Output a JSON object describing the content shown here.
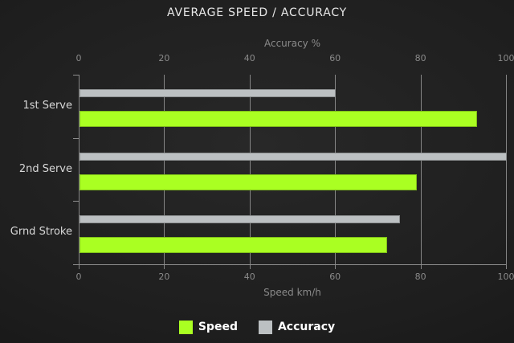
{
  "title": "AVERAGE SPEED / ACCURACY",
  "colors": {
    "speed": "#aaff22",
    "accuracy": "#bcc0c2",
    "grid": "#858585",
    "tick_text": "#8a8a8a",
    "category_text": "#d8d8d8",
    "title_text": "#e8e8e8",
    "legend_text": "#ffffff",
    "background_center": "#282828",
    "background_edge": "#121212"
  },
  "chart_data": {
    "type": "bar",
    "orientation": "horizontal",
    "title": "AVERAGE SPEED / ACCURACY",
    "categories": [
      "1st Serve",
      "2nd Serve",
      "Grnd Stroke"
    ],
    "series": [
      {
        "name": "Accuracy",
        "color": "#bcc0c2",
        "axis": "top",
        "values": [
          60,
          100,
          75
        ]
      },
      {
        "name": "Speed",
        "color": "#aaff22",
        "axis": "bottom",
        "values": [
          93,
          79,
          72
        ]
      }
    ],
    "top_axis": {
      "label": "Accuracy %",
      "ticks": [
        0,
        20,
        40,
        60,
        80,
        100
      ],
      "range": [
        0,
        100
      ]
    },
    "bottom_axis": {
      "label": "Speed km/h",
      "ticks": [
        0,
        20,
        40,
        60,
        80,
        100
      ],
      "range": [
        0,
        100
      ]
    },
    "grid": true,
    "legend_position": "bottom",
    "legend_order": [
      "Speed",
      "Accuracy"
    ]
  }
}
